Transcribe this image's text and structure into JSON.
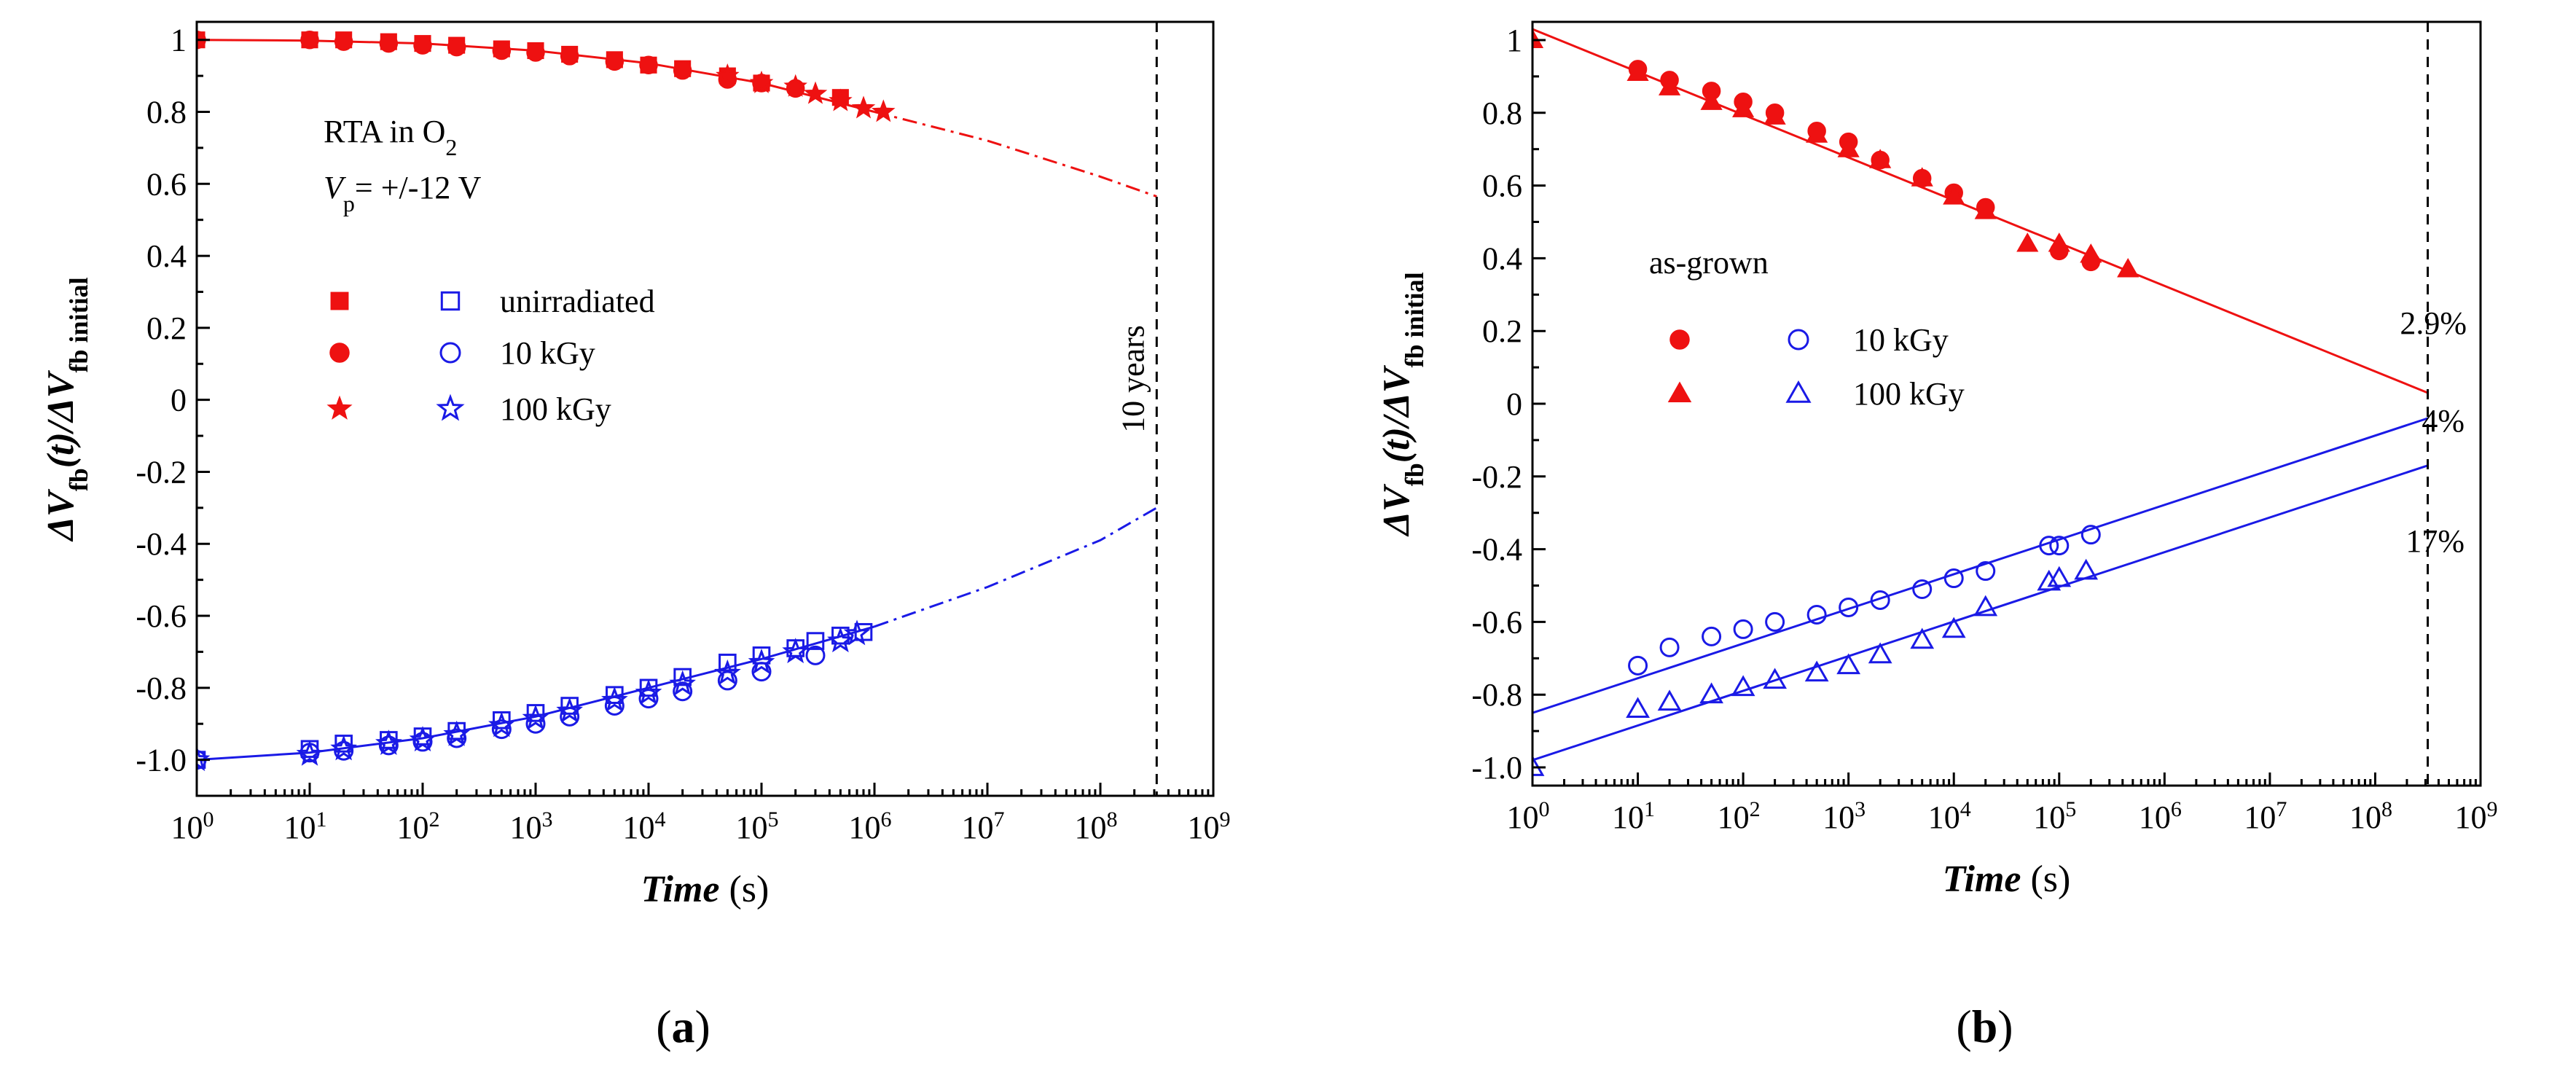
{
  "colors": {
    "red": "#ee1111",
    "blue": "#1a1ae6",
    "black": "#000000"
  },
  "chart_data": [
    {
      "panel_label": "(a)",
      "panel_letter": "a",
      "type": "scatter",
      "xscale": "log",
      "xlim": [
        1,
        1000000000
      ],
      "ylim": [
        -1.1,
        1.05
      ],
      "x_tick_labels": [
        {
          "base": "10",
          "exp": "0"
        },
        {
          "base": "10",
          "exp": "1"
        },
        {
          "base": "10",
          "exp": "2"
        },
        {
          "base": "10",
          "exp": "3"
        },
        {
          "base": "10",
          "exp": "4"
        },
        {
          "base": "10",
          "exp": "5"
        },
        {
          "base": "10",
          "exp": "6"
        },
        {
          "base": "10",
          "exp": "7"
        },
        {
          "base": "10",
          "exp": "8"
        },
        {
          "base": "10",
          "exp": "9"
        }
      ],
      "y_ticks": [
        {
          "value": 1,
          "label": "1"
        },
        {
          "value": 0.8,
          "label": "0.8"
        },
        {
          "value": 0.6,
          "label": "0.6"
        },
        {
          "value": 0.4,
          "label": "0.4"
        },
        {
          "value": 0.2,
          "label": "0.2"
        },
        {
          "value": 0,
          "label": "0"
        },
        {
          "value": -0.2,
          "label": "-0.2"
        },
        {
          "value": -0.4,
          "label": "-0.4"
        },
        {
          "value": -0.6,
          "label": "-0.6"
        },
        {
          "value": -0.8,
          "label": "-0.8"
        },
        {
          "value": -1.0,
          "label": "-1.0"
        }
      ],
      "xlabel": {
        "italic": "Time",
        "unit": " (s)"
      },
      "ylabel": {
        "delta": "ΔV",
        "sub1": "fb",
        "mid": "(t)/ΔV",
        "sub2": "fb initial",
        "t": "t"
      },
      "annotations": {
        "line1_main": "RTA in O",
        "line1_sub": "2",
        "line2_v": "V",
        "line2_sub": "p",
        "line2_rest": "= +/-12 V",
        "vertical_label": "10 years",
        "vline_x": 315360000
      },
      "legend": [
        {
          "label": "unirradiated",
          "marker": "square"
        },
        {
          "label": "10 kGy",
          "marker": "circle"
        },
        {
          "label": "100 kGy",
          "marker": "star"
        }
      ],
      "series": [
        {
          "name": "unirradiated",
          "polarity": "+",
          "marker": "square",
          "filled": true,
          "color": "red",
          "x": [
            1,
            10,
            20,
            50,
            100,
            200,
            500,
            1000,
            2000,
            5000,
            10000,
            20000,
            50000,
            100000,
            500000
          ],
          "y": [
            1.0,
            1.0,
            1.0,
            0.995,
            0.99,
            0.985,
            0.975,
            0.97,
            0.96,
            0.945,
            0.93,
            0.92,
            0.9,
            0.88,
            0.84
          ]
        },
        {
          "name": "10 kGy",
          "polarity": "+",
          "marker": "circle",
          "filled": true,
          "color": "red",
          "x": [
            1,
            10,
            20,
            50,
            100,
            200,
            500,
            1000,
            2000,
            5000,
            10000,
            20000,
            50000,
            100000,
            200000
          ],
          "y": [
            1.0,
            1.0,
            0.995,
            0.99,
            0.985,
            0.98,
            0.97,
            0.965,
            0.955,
            0.94,
            0.93,
            0.915,
            0.89,
            0.88,
            0.865
          ]
        },
        {
          "name": "100 kGy",
          "polarity": "+",
          "marker": "star",
          "filled": true,
          "color": "red",
          "x": [
            50000,
            100000,
            200000,
            300000,
            500000,
            800000,
            1200000
          ],
          "y": [
            0.9,
            0.88,
            0.87,
            0.85,
            0.83,
            0.81,
            0.8
          ]
        },
        {
          "name": "unirradiated",
          "polarity": "-",
          "marker": "square",
          "filled": false,
          "color": "blue",
          "x": [
            1,
            10,
            20,
            50,
            100,
            200,
            500,
            1000,
            2000,
            5000,
            10000,
            20000,
            50000,
            100000,
            200000,
            300000,
            500000,
            800000
          ],
          "y": [
            -1.0,
            -0.97,
            -0.955,
            -0.945,
            -0.935,
            -0.92,
            -0.89,
            -0.87,
            -0.85,
            -0.82,
            -0.8,
            -0.77,
            -0.73,
            -0.71,
            -0.69,
            -0.67,
            -0.655,
            -0.645
          ]
        },
        {
          "name": "10 kGy",
          "polarity": "-",
          "marker": "circle",
          "filled": false,
          "color": "blue",
          "x": [
            1,
            10,
            20,
            50,
            100,
            200,
            500,
            1000,
            2000,
            5000,
            10000,
            20000,
            50000,
            100000,
            300000
          ],
          "y": [
            -1.0,
            -0.98,
            -0.975,
            -0.96,
            -0.95,
            -0.94,
            -0.915,
            -0.9,
            -0.88,
            -0.85,
            -0.83,
            -0.81,
            -0.78,
            -0.755,
            -0.71
          ]
        },
        {
          "name": "100 kGy",
          "polarity": "-",
          "marker": "star",
          "filled": false,
          "color": "blue",
          "x": [
            1,
            10,
            20,
            50,
            100,
            200,
            500,
            1000,
            2000,
            5000,
            10000,
            20000,
            50000,
            100000,
            200000,
            500000,
            700000
          ],
          "y": [
            -1.0,
            -0.985,
            -0.97,
            -0.955,
            -0.945,
            -0.93,
            -0.905,
            -0.885,
            -0.865,
            -0.835,
            -0.815,
            -0.79,
            -0.76,
            -0.73,
            -0.7,
            -0.67,
            -0.65
          ]
        }
      ],
      "fits": [
        {
          "name": "fit (+)",
          "color": "red",
          "style": "solid",
          "x": [
            1,
            10,
            100,
            1000,
            10000,
            100000,
            1000000
          ],
          "y": [
            1.0,
            0.998,
            0.99,
            0.97,
            0.935,
            0.88,
            0.8
          ]
        },
        {
          "name": "extrapolation (+)",
          "color": "red",
          "style": "dashdot",
          "x": [
            1000000,
            10000000,
            100000000,
            315360000
          ],
          "y": [
            0.8,
            0.72,
            0.62,
            0.565
          ]
        },
        {
          "name": "fit (-)",
          "color": "blue",
          "style": "solid",
          "x": [
            1,
            10,
            100,
            1000,
            10000,
            100000,
            1000000
          ],
          "y": [
            -1.0,
            -0.98,
            -0.94,
            -0.88,
            -0.8,
            -0.72,
            -0.63
          ]
        },
        {
          "name": "extrapolation (-)",
          "color": "blue",
          "style": "dashdot",
          "x": [
            1000000,
            10000000,
            100000000,
            315360000
          ],
          "y": [
            -0.63,
            -0.52,
            -0.39,
            -0.3
          ]
        }
      ]
    },
    {
      "panel_label": "(b)",
      "panel_letter": "b",
      "type": "scatter",
      "xscale": "log",
      "xlim": [
        1,
        1000000000
      ],
      "ylim": [
        -1.05,
        1.05
      ],
      "x_tick_labels": [
        {
          "base": "10",
          "exp": "0"
        },
        {
          "base": "10",
          "exp": "1"
        },
        {
          "base": "10",
          "exp": "2"
        },
        {
          "base": "10",
          "exp": "3"
        },
        {
          "base": "10",
          "exp": "4"
        },
        {
          "base": "10",
          "exp": "5"
        },
        {
          "base": "10",
          "exp": "6"
        },
        {
          "base": "10",
          "exp": "7"
        },
        {
          "base": "10",
          "exp": "8"
        },
        {
          "base": "10",
          "exp": "9"
        }
      ],
      "y_ticks": [
        {
          "value": 1,
          "label": "1"
        },
        {
          "value": 0.8,
          "label": "0.8"
        },
        {
          "value": 0.6,
          "label": "0.6"
        },
        {
          "value": 0.4,
          "label": "0.4"
        },
        {
          "value": 0.2,
          "label": "0.2"
        },
        {
          "value": 0,
          "label": "0"
        },
        {
          "value": -0.2,
          "label": "-0.2"
        },
        {
          "value": -0.4,
          "label": "-0.4"
        },
        {
          "value": -0.6,
          "label": "-0.6"
        },
        {
          "value": -0.8,
          "label": "-0.8"
        },
        {
          "value": -1.0,
          "label": "-1.0"
        }
      ],
      "xlabel": {
        "italic": "Time",
        "unit": " (s)"
      },
      "ylabel": {
        "delta": "ΔV",
        "sub1": "fb",
        "mid": "(t)/ΔV",
        "sub2": "fb initial",
        "t": "t"
      },
      "annotations": {
        "title": "as-grown",
        "pct_red": "2.9%",
        "pct_blue1": "4%",
        "pct_blue2": "17%",
        "vline_x": 315360000
      },
      "legend": [
        {
          "label": "10 kGy",
          "marker": "circle"
        },
        {
          "label": "100 kGy",
          "marker": "triangle"
        }
      ],
      "series": [
        {
          "name": "10 kGy",
          "polarity": "+",
          "marker": "circle",
          "filled": true,
          "color": "red",
          "x": [
            10,
            20,
            50,
            100,
            200,
            500,
            1000,
            2000,
            5000,
            10000,
            20000,
            100000,
            200000
          ],
          "y": [
            0.92,
            0.89,
            0.86,
            0.83,
            0.8,
            0.75,
            0.72,
            0.67,
            0.62,
            0.58,
            0.54,
            0.42,
            0.39
          ]
        },
        {
          "name": "100 kGy",
          "polarity": "+",
          "marker": "triangle",
          "filled": true,
          "color": "red",
          "x": [
            1,
            10,
            20,
            50,
            100,
            200,
            500,
            1000,
            2000,
            5000,
            10000,
            20000,
            50000,
            100000,
            200000,
            450000
          ],
          "y": [
            1.0,
            0.91,
            0.87,
            0.83,
            0.81,
            0.79,
            0.74,
            0.7,
            0.67,
            0.62,
            0.57,
            0.53,
            0.44,
            0.44,
            0.41,
            0.37
          ]
        },
        {
          "name": "10 kGy",
          "polarity": "-",
          "marker": "circle",
          "filled": false,
          "color": "blue",
          "x": [
            10,
            20,
            50,
            100,
            200,
            500,
            1000,
            2000,
            5000,
            10000,
            20000,
            80000,
            100000,
            200000
          ],
          "y": [
            -0.72,
            -0.67,
            -0.64,
            -0.62,
            -0.6,
            -0.58,
            -0.56,
            -0.54,
            -0.51,
            -0.48,
            -0.46,
            -0.39,
            -0.39,
            -0.36
          ]
        },
        {
          "name": "100 kGy",
          "polarity": "-",
          "marker": "triangle",
          "filled": false,
          "color": "blue",
          "x": [
            1,
            10,
            20,
            50,
            100,
            200,
            500,
            1000,
            2000,
            5000,
            10000,
            20000,
            80000,
            100000,
            180000
          ],
          "y": [
            -1.0,
            -0.84,
            -0.82,
            -0.8,
            -0.78,
            -0.76,
            -0.74,
            -0.72,
            -0.69,
            -0.65,
            -0.62,
            -0.56,
            -0.49,
            -0.48,
            -0.46
          ]
        }
      ],
      "fits": [
        {
          "name": "fit (+)",
          "color": "red",
          "style": "solid",
          "x": [
            1,
            315360000
          ],
          "y": [
            1.03,
            0.03
          ]
        },
        {
          "name": "fit 10 kGy (-)",
          "color": "blue",
          "style": "solid",
          "x": [
            1,
            315360000
          ],
          "y": [
            -0.85,
            -0.04
          ]
        },
        {
          "name": "fit 100 kGy (-)",
          "color": "blue",
          "style": "solid",
          "x": [
            1,
            315360000
          ],
          "y": [
            -0.98,
            -0.17
          ]
        }
      ]
    }
  ]
}
